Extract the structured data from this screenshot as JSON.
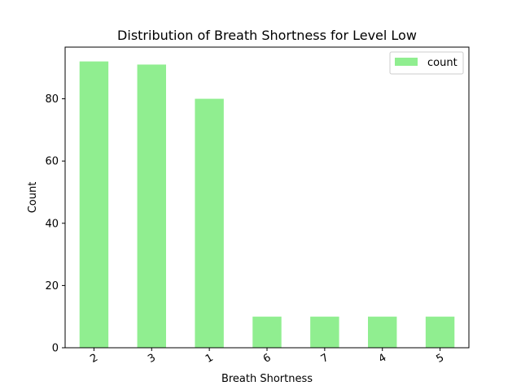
{
  "chart_data": {
    "type": "bar",
    "title": "Distribution of Breath Shortness for Level Low",
    "xlabel": "Breath Shortness",
    "ylabel": "Count",
    "categories": [
      "2",
      "3",
      "1",
      "6",
      "7",
      "4",
      "5"
    ],
    "series": [
      {
        "name": "count",
        "values": [
          92,
          91,
          80,
          10,
          10,
          10,
          10
        ],
        "color": "#90ee90"
      }
    ],
    "yticks": [
      0,
      20,
      40,
      60,
      80
    ],
    "ylim": [
      0,
      96.6
    ],
    "grid": false,
    "legend_position": "top-right",
    "xtick_rotation_deg": -30
  }
}
